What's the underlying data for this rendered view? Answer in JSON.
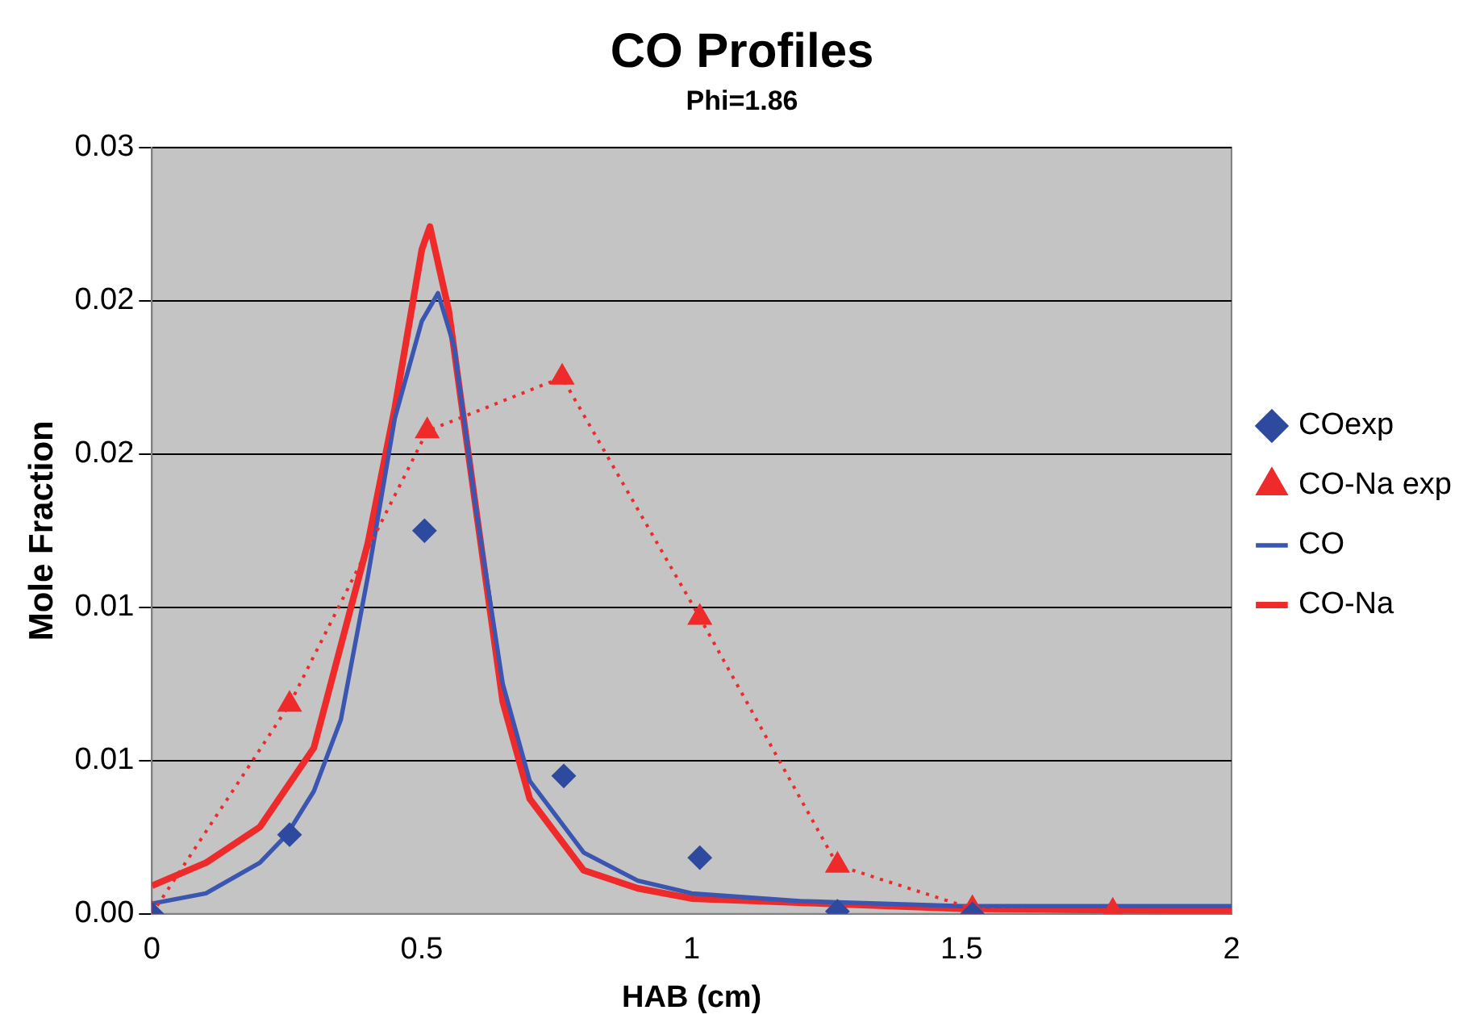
{
  "chart_data": {
    "type": "scatter",
    "title": "CO Profiles",
    "subtitle": "Phi=1.86",
    "xlabel": "HAB (cm)",
    "ylabel": "Mole Fraction",
    "xlim": [
      0,
      2
    ],
    "xticks": [
      0,
      0.5,
      1,
      1.5,
      2
    ],
    "ylim": [
      0,
      0.03
    ],
    "yticks": [
      {
        "value": 0,
        "label": "0.00"
      },
      {
        "value": 0.006,
        "label": "0.01"
      },
      {
        "value": 0.012,
        "label": "0.01"
      },
      {
        "value": 0.018,
        "label": "0.02"
      },
      {
        "value": 0.024,
        "label": "0.02"
      },
      {
        "value": 0.03,
        "label": "0.03"
      }
    ],
    "grid": "y",
    "legend": "right",
    "series": [
      {
        "name": "COexp",
        "type": "scatter",
        "marker": "diamond",
        "color": "#2e4a9e",
        "x": [
          0,
          0.255,
          0.505,
          0.763,
          1.015,
          1.27,
          1.52
        ],
        "values": [
          0,
          0.0031,
          0.015,
          0.0054,
          0.0022,
          0.0001,
          0
        ]
      },
      {
        "name": "CO",
        "type": "line",
        "marker": "none",
        "line_style": "solid",
        "color": "#3a56b0",
        "x": [
          0,
          0.1,
          0.2,
          0.25,
          0.3,
          0.35,
          0.4,
          0.45,
          0.5,
          0.53,
          0.56,
          0.6,
          0.65,
          0.7,
          0.8,
          0.9,
          1.0,
          1.2,
          1.5,
          2.0
        ],
        "values": [
          0.0004,
          0.0008,
          0.002,
          0.0031,
          0.0048,
          0.0076,
          0.0132,
          0.0194,
          0.0232,
          0.0243,
          0.0222,
          0.0159,
          0.009,
          0.0052,
          0.0024,
          0.0013,
          0.0008,
          0.0005,
          0.0003,
          0.0003
        ]
      },
      {
        "name": "CO-Na exp",
        "type": "line",
        "marker": "triangle",
        "line_style": "dotted",
        "color": "#ee2a2a",
        "x": [
          0,
          0.255,
          0.51,
          0.76,
          1.015,
          1.27,
          1.52,
          1.78
        ],
        "values": [
          0,
          0.0082,
          0.0189,
          0.021,
          0.0116,
          0.0019,
          0.0002,
          0.0001
        ]
      },
      {
        "name": "CO-Na",
        "type": "line",
        "marker": "none",
        "line_style": "solid",
        "color": "#ee2a2a",
        "x": [
          0,
          0.1,
          0.2,
          0.3,
          0.4,
          0.45,
          0.5,
          0.515,
          0.55,
          0.6,
          0.65,
          0.7,
          0.8,
          0.9,
          1.0,
          1.5,
          2.0
        ],
        "values": [
          0.0011,
          0.002,
          0.0034,
          0.0065,
          0.0145,
          0.0198,
          0.026,
          0.0269,
          0.0236,
          0.0159,
          0.0083,
          0.0045,
          0.0017,
          0.001,
          0.0006,
          0.0002,
          0.0001
        ]
      }
    ]
  }
}
